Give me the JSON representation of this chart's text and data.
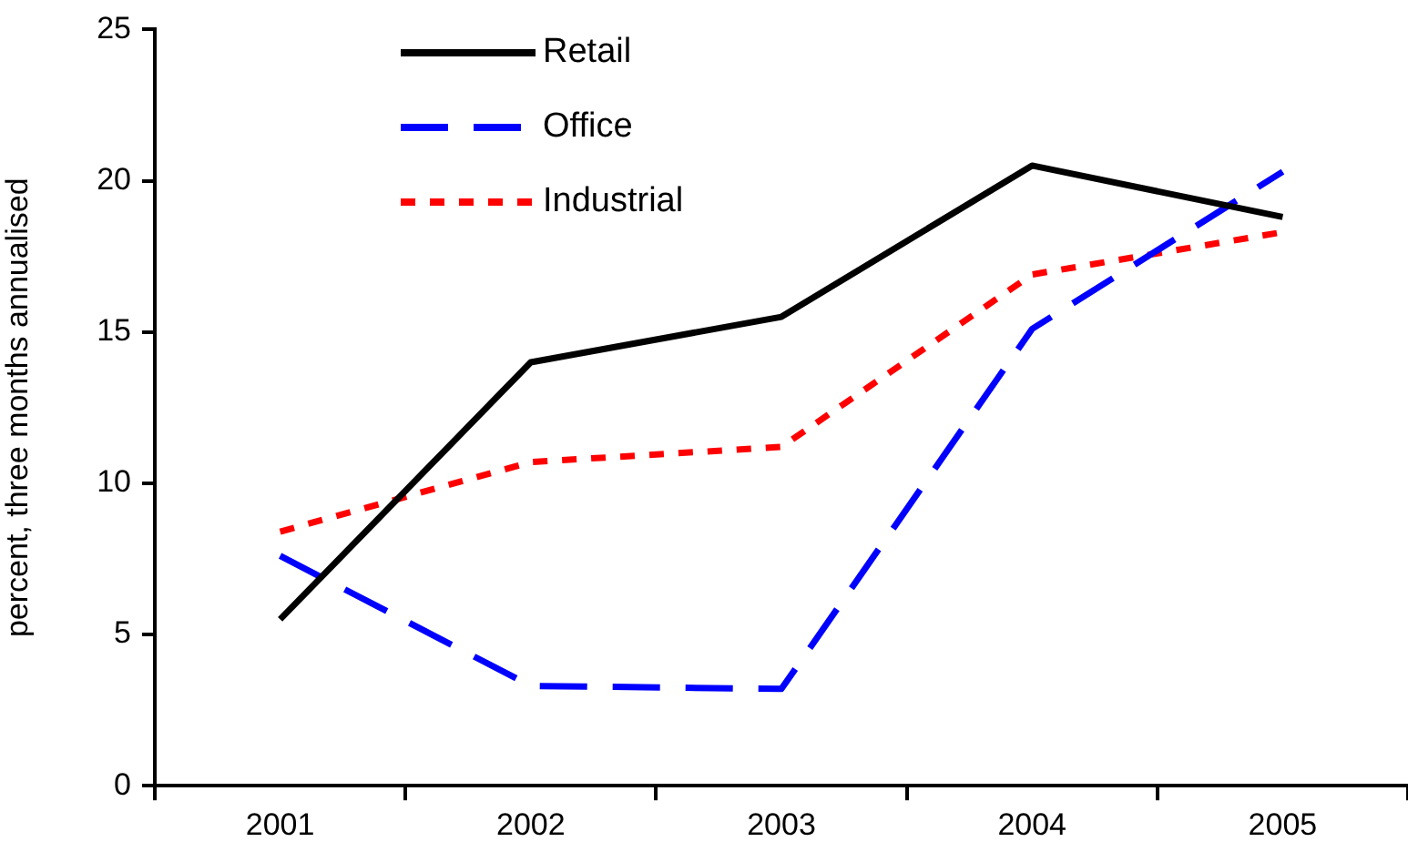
{
  "chart_data": {
    "type": "line",
    "ylabel": "percent, three months annualised",
    "categories": [
      "2001",
      "2002",
      "2003",
      "2004",
      "2005"
    ],
    "series": [
      {
        "name": "Retail",
        "color": "#000000",
        "line_style": "solid",
        "values": [
          5.5,
          14.0,
          15.5,
          20.5,
          18.8
        ]
      },
      {
        "name": "Office",
        "color": "#0000ff",
        "line_style": "dashed",
        "values": [
          7.6,
          3.3,
          3.2,
          15.1,
          20.3
        ]
      },
      {
        "name": "Industrial",
        "color": "#ff0000",
        "line_style": "dotted",
        "values": [
          8.4,
          10.7,
          11.2,
          16.9,
          18.3
        ]
      }
    ],
    "ylim": [
      0,
      25
    ],
    "yticks": [
      0,
      5,
      10,
      15,
      20,
      25
    ],
    "grid": false,
    "legend": "top",
    "marker": "none"
  }
}
